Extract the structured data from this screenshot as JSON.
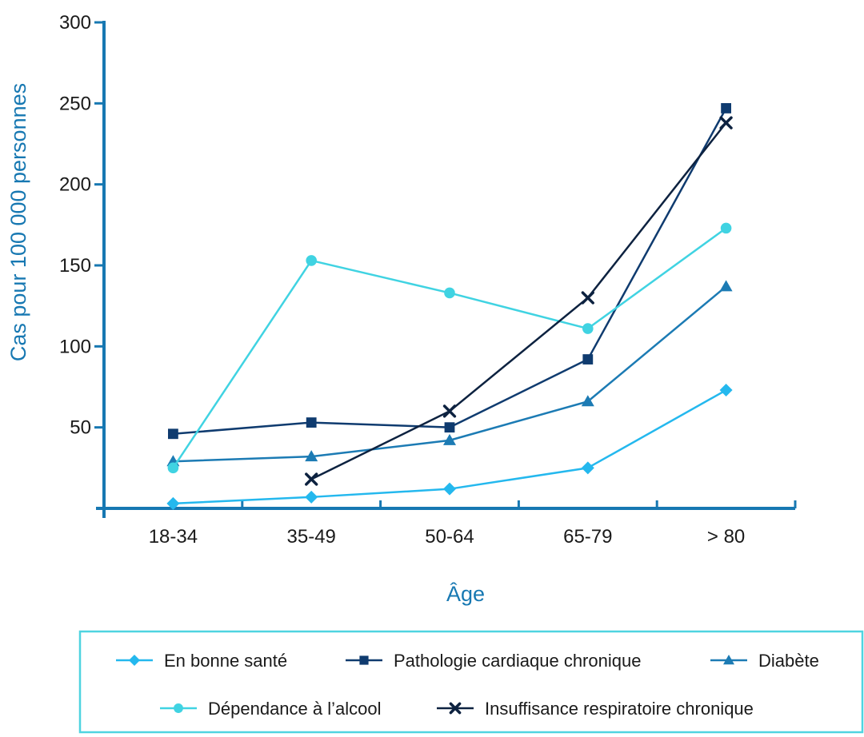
{
  "colors": {
    "axis": "#1778b2",
    "title": "#1778b2",
    "legend_border": "#4fd4e0"
  },
  "chart_data": {
    "type": "line",
    "title": "",
    "xlabel": "Âge",
    "ylabel": "Cas pour 100 000 personnes",
    "categories": [
      "18-34",
      "35-49",
      "50-64",
      "65-79",
      "> 80"
    ],
    "ylim": [
      0,
      300
    ],
    "yticks": [
      50,
      100,
      150,
      200,
      250,
      300
    ],
    "grid": false,
    "legend_position": "bottom",
    "series": [
      {
        "name": "En bonne santé",
        "color": "#24b8ee",
        "marker": "diamond",
        "values": [
          3,
          7,
          12,
          25,
          73
        ]
      },
      {
        "name": "Pathologie cardiaque chronique",
        "color": "#0f3b6f",
        "marker": "square",
        "values": [
          46,
          53,
          50,
          92,
          247
        ]
      },
      {
        "name": "Diabète",
        "color": "#1c7bb4",
        "marker": "triangle",
        "values": [
          29,
          32,
          42,
          66,
          137
        ]
      },
      {
        "name": "Dépendance à l’alcool",
        "color": "#40d3e2",
        "marker": "circle",
        "values": [
          25,
          153,
          133,
          111,
          173
        ]
      },
      {
        "name": "Insuffisance respiratoire chronique",
        "color": "#0d2240",
        "marker": "x",
        "values": [
          null,
          18,
          60,
          130,
          238
        ]
      }
    ]
  }
}
